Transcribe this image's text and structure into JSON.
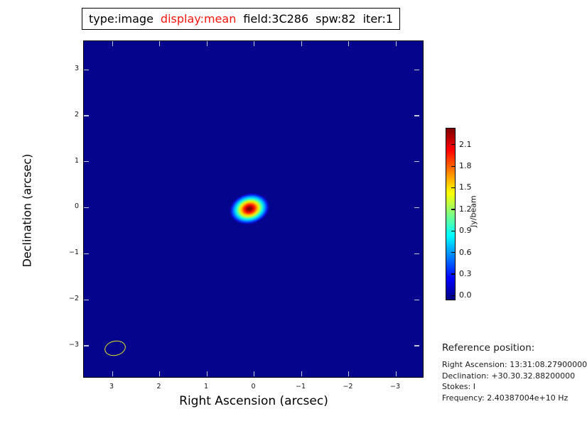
{
  "title": {
    "segments": [
      {
        "text": "type:image",
        "color": "#000000"
      },
      {
        "text": "display:mean",
        "color": "#f3160e"
      },
      {
        "text": "field:3C286",
        "color": "#000000"
      },
      {
        "text": "spw:82",
        "color": "#000000"
      },
      {
        "text": "iter:1",
        "color": "#000000"
      }
    ]
  },
  "axes": {
    "xlabel": "Right Ascension (arcsec)",
    "ylabel": "Declination (arcsec)",
    "x_ticks": [
      "3",
      "2",
      "1",
      "0",
      "−1",
      "−2",
      "−3"
    ],
    "y_ticks": [
      "3",
      "2",
      "1",
      "0",
      "−1",
      "−2",
      "−3"
    ]
  },
  "colorbar": {
    "label": "Jy/beam",
    "ticks": [
      "2.1",
      "1.8",
      "1.5",
      "1.2",
      "0.9",
      "0.6",
      "0.3",
      "0.0"
    ],
    "colormap": "jet",
    "max_color": "#7f0000",
    "min_color": "#000080"
  },
  "reference": {
    "heading": "Reference position:",
    "lines": [
      "Right Ascension: 13:31:08.27900000",
      "Declination: +30.30.32.88200000",
      "Stokes: I",
      "Frequency: 2.40387004e+10 Hz"
    ]
  },
  "chart_data": {
    "type": "heatmap",
    "title": "type:image display:mean field:3C286 spw:82 iter:1",
    "xlabel": "Right Ascension (arcsec)",
    "ylabel": "Declination (arcsec)",
    "xlim": [
      3.6,
      -3.6
    ],
    "ylim": [
      -3.65,
      3.6
    ],
    "x_tick_values": [
      3,
      2,
      1,
      0,
      -1,
      -2,
      -3
    ],
    "y_tick_values": [
      3,
      2,
      1,
      0,
      -1,
      -2,
      -3
    ],
    "grid": false,
    "colormap": "jet",
    "background_color": "#04048c",
    "colorbar": {
      "label": "Jy/beam",
      "tick_values": [
        0.0,
        0.3,
        0.6,
        0.9,
        1.2,
        1.5,
        1.8,
        2.1
      ],
      "range": [
        -0.07,
        2.33
      ]
    },
    "background_value_jy_per_beam": 0.0,
    "source": {
      "name": "3C286",
      "ra_arcsec": 0.1,
      "dec_arcsec": 0.0,
      "peak_jy_per_beam": 2.33,
      "shape": "elliptical-gaussian",
      "fwhm_major_arcsec": 0.45,
      "fwhm_minor_arcsec": 0.32,
      "position_angle_deg": -15
    },
    "beam": {
      "ra_arcsec": 2.94,
      "dec_arcsec": -3.05,
      "major_arcsec": 0.45,
      "minor_arcsec": 0.31,
      "position_angle_deg": -12,
      "outline_color": "#e8e824"
    }
  }
}
